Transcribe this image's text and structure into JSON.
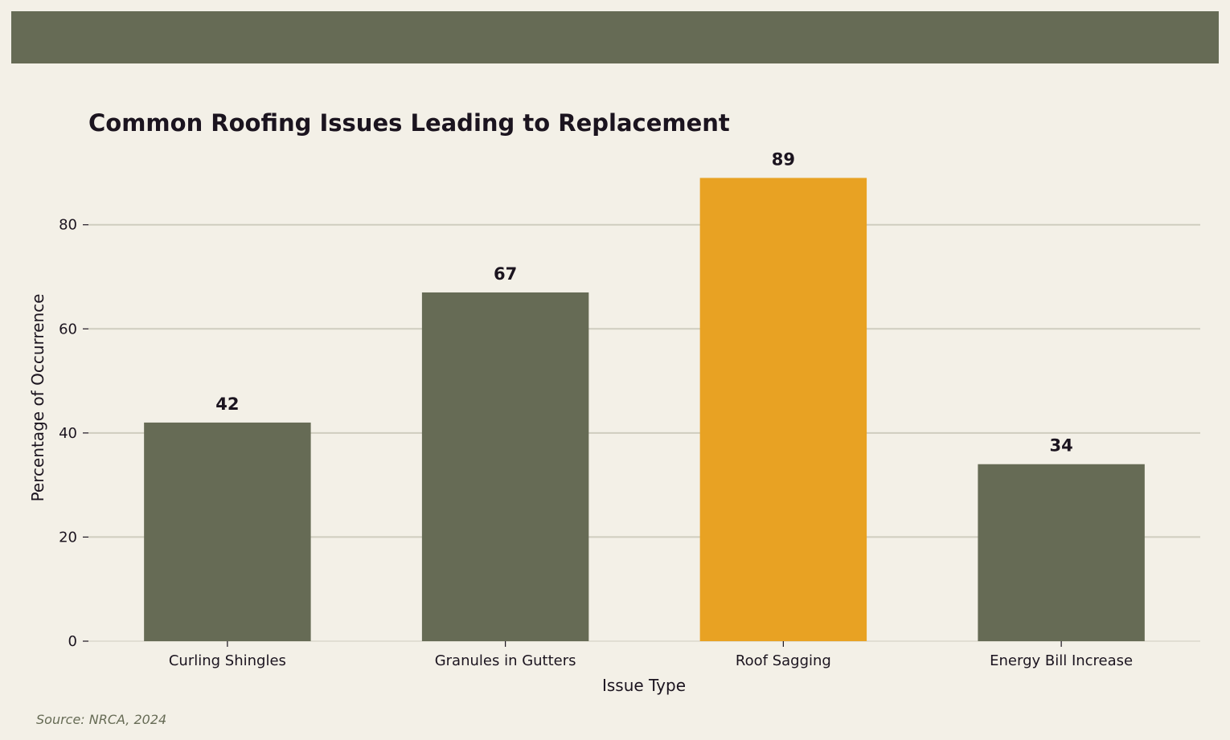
{
  "source_note": "Source: NRCA, 2024",
  "colors": {
    "background": "#f3f0e7",
    "header_band": "#666b55",
    "bar_default": "#666b55",
    "bar_highlight": "#e8a223",
    "grid": "#cfcdbf",
    "text": "#1b141f"
  },
  "chart_data": {
    "type": "bar",
    "title": "Common Roofing Issues Leading to Replacement",
    "xlabel": "Issue Type",
    "ylabel": "Percentage of Occurrence",
    "categories": [
      "Curling Shingles",
      "Granules in Gutters",
      "Roof Sagging",
      "Energy Bill Increase"
    ],
    "values": [
      42,
      67,
      89,
      34
    ],
    "highlight_index": 2,
    "ylim": [
      0,
      92
    ],
    "yticks": [
      0,
      20,
      40,
      60,
      80
    ],
    "grid": true,
    "grid_axis": "y",
    "legend": "none",
    "data_labels": true
  }
}
